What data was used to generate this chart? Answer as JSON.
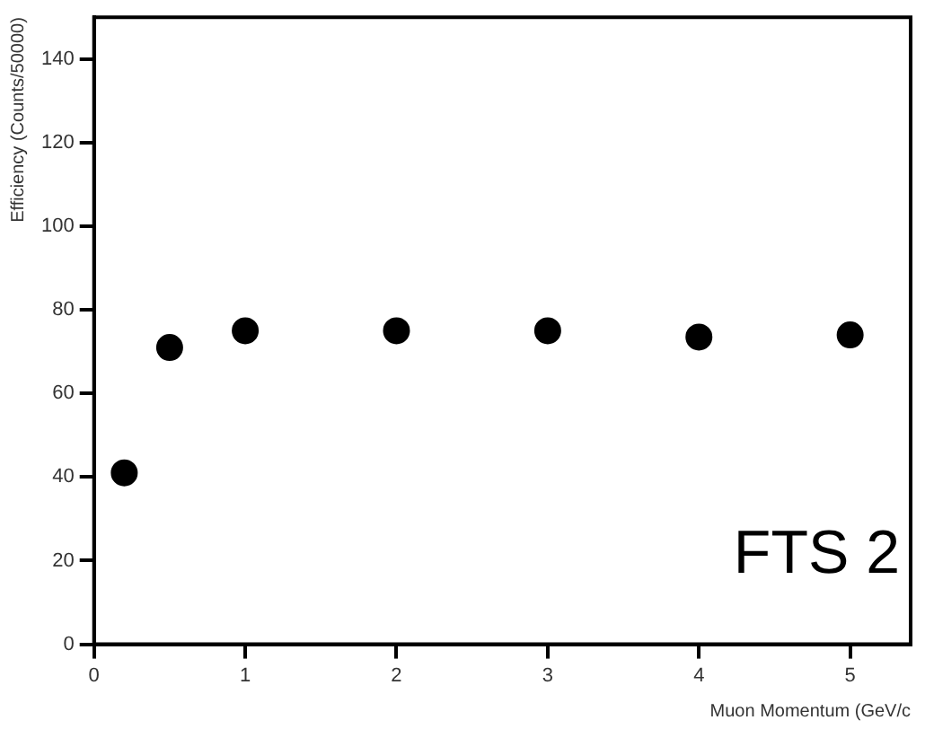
{
  "chart_data": {
    "type": "scatter",
    "xlabel": "Muon Momentum (GeV/c",
    "ylabel": "Efficiency (Counts/50000)",
    "x": [
      0.2,
      0.5,
      1,
      2,
      3,
      4,
      5
    ],
    "series": [
      {
        "color": "#000000",
        "values": [
          41,
          71,
          75,
          75,
          75,
          73.5,
          74
        ]
      }
    ],
    "xlim": [
      0,
      5.4
    ],
    "xticks": [
      0,
      1,
      2,
      3,
      4,
      5
    ],
    "ylim": [
      0,
      150
    ],
    "yticks": [
      0,
      20,
      40,
      60,
      80,
      100,
      120,
      140
    ],
    "marker": "circle",
    "grid": false,
    "legend": false,
    "annotations": [
      "FTS 2"
    ]
  }
}
